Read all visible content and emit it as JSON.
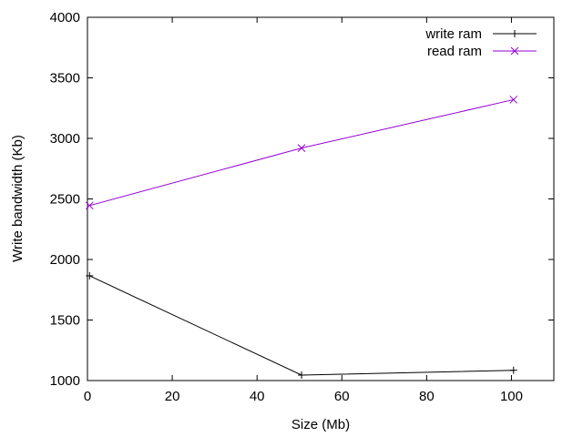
{
  "chart_data": {
    "type": "line",
    "title": "",
    "xlabel": "Size (Mb)",
    "ylabel": "Write bandwidth (Kb)",
    "xlim": [
      0,
      110
    ],
    "ylim": [
      1000,
      4000
    ],
    "xticks": [
      0,
      20,
      40,
      60,
      80,
      100
    ],
    "yticks": [
      1000,
      1500,
      2000,
      2500,
      3000,
      3500,
      4000
    ],
    "grid": false,
    "legend_position": "top-right",
    "series": [
      {
        "name": "write ram",
        "color": "#000000",
        "marker": "plus",
        "x": [
          0.5,
          50.5,
          100.5
        ],
        "y": [
          1865,
          1045,
          1085
        ]
      },
      {
        "name": "read ram",
        "color": "#9400d3",
        "marker": "cross",
        "x": [
          0.5,
          50.5,
          100.5
        ],
        "y": [
          2445,
          2920,
          3320
        ]
      }
    ]
  }
}
